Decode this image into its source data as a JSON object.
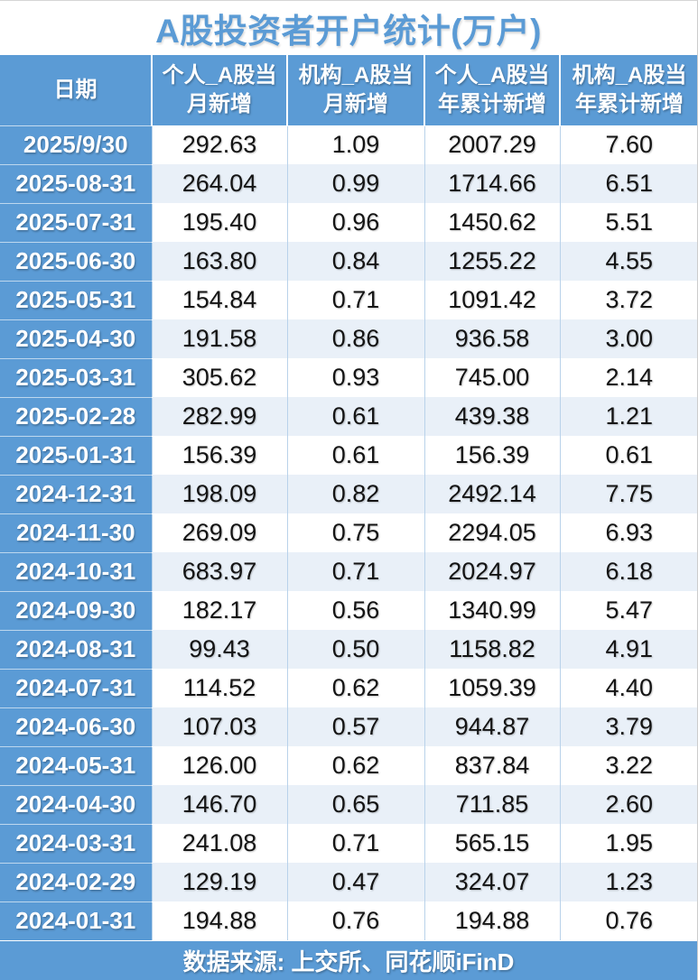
{
  "chart_data": {
    "type": "table",
    "title": "A股投资者开户统计(万户)",
    "columns": [
      "日期",
      "个人_A股当月新增",
      "机构_A股当月新增",
      "个人_A股当年累计新增",
      "机构_A股当年累计新增"
    ],
    "header_lines": [
      [
        "日期",
        ""
      ],
      [
        "个人_A股当",
        "月新增"
      ],
      [
        "机构_A股当",
        "月新增"
      ],
      [
        "个人_A股当",
        "年累计新增"
      ],
      [
        "机构_A股当",
        "年累计新增"
      ]
    ],
    "rows": [
      [
        "2025/9/30",
        "292.63",
        "1.09",
        "2007.29",
        "7.60"
      ],
      [
        "2025-08-31",
        "264.04",
        "0.99",
        "1714.66",
        "6.51"
      ],
      [
        "2025-07-31",
        "195.40",
        "0.96",
        "1450.62",
        "5.51"
      ],
      [
        "2025-06-30",
        "163.80",
        "0.84",
        "1255.22",
        "4.55"
      ],
      [
        "2025-05-31",
        "154.84",
        "0.71",
        "1091.42",
        "3.72"
      ],
      [
        "2025-04-30",
        "191.58",
        "0.86",
        "936.58",
        "3.00"
      ],
      [
        "2025-03-31",
        "305.62",
        "0.93",
        "745.00",
        "2.14"
      ],
      [
        "2025-02-28",
        "282.99",
        "0.61",
        "439.38",
        "1.21"
      ],
      [
        "2025-01-31",
        "156.39",
        "0.61",
        "156.39",
        "0.61"
      ],
      [
        "2024-12-31",
        "198.09",
        "0.82",
        "2492.14",
        "7.75"
      ],
      [
        "2024-11-30",
        "269.09",
        "0.75",
        "2294.05",
        "6.93"
      ],
      [
        "2024-10-31",
        "683.97",
        "0.71",
        "2024.97",
        "6.18"
      ],
      [
        "2024-09-30",
        "182.17",
        "0.56",
        "1340.99",
        "5.47"
      ],
      [
        "2024-08-31",
        "99.43",
        "0.50",
        "1158.82",
        "4.91"
      ],
      [
        "2024-07-31",
        "114.52",
        "0.62",
        "1059.39",
        "4.40"
      ],
      [
        "2024-06-30",
        "107.03",
        "0.57",
        "944.87",
        "3.79"
      ],
      [
        "2024-05-31",
        "126.00",
        "0.62",
        "837.84",
        "3.22"
      ],
      [
        "2024-04-30",
        "146.70",
        "0.65",
        "711.85",
        "2.60"
      ],
      [
        "2024-03-31",
        "241.08",
        "0.71",
        "565.15",
        "1.95"
      ],
      [
        "2024-02-29",
        "129.19",
        "0.47",
        "324.07",
        "1.23"
      ],
      [
        "2024-01-31",
        "194.88",
        "0.76",
        "194.88",
        "0.76"
      ]
    ],
    "source_note": "数据来源: 上交所、同花顺iFinD",
    "layout": {
      "banded_rows": true,
      "header_position": "top",
      "grid": "vertical-light"
    }
  },
  "colors": {
    "header_blue": "#5B9BD5",
    "row_alt": "#E9F0F8",
    "row_white": "#FFFFFF",
    "grid_line": "#B9D2EA",
    "title_text": "#5B9BD5",
    "header_text": "#FFFFFF",
    "data_text": "#141414"
  }
}
